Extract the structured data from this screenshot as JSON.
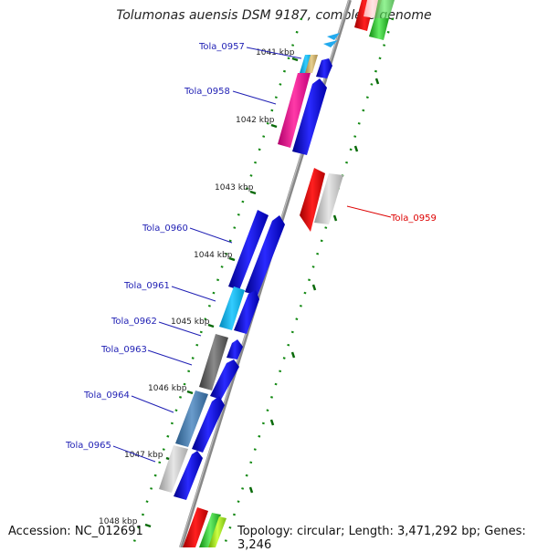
{
  "title": "Tolumonas auensis DSM 9187, complete genome",
  "footer": {
    "accession": "Accession: NC_012691",
    "summary": "Topology: circular; Length: 3,471,292 bp; Genes: 3,246"
  },
  "scale": {
    "unit": "kbp",
    "ticks": [
      "1041 kbp",
      "1042 kbp",
      "1043 kbp",
      "1044 kbp",
      "1045 kbp",
      "1046 kbp",
      "1047 kbp",
      "1048 kbp"
    ]
  },
  "genes": [
    {
      "name": "Tola_0957",
      "color": "#1f1fb4"
    },
    {
      "name": "Tola_0958",
      "color": "#1f1fb4"
    },
    {
      "name": "Tola_0959",
      "color": "#dd0000"
    },
    {
      "name": "Tola_0960",
      "color": "#1f1fb4"
    },
    {
      "name": "Tola_0961",
      "color": "#1f1fb4"
    },
    {
      "name": "Tola_0962",
      "color": "#1f1fb4"
    },
    {
      "name": "Tola_0963",
      "color": "#1f1fb4"
    },
    {
      "name": "Tola_0964",
      "color": "#1f1fb4"
    },
    {
      "name": "Tola_0965",
      "color": "#1f1fb4"
    }
  ]
}
